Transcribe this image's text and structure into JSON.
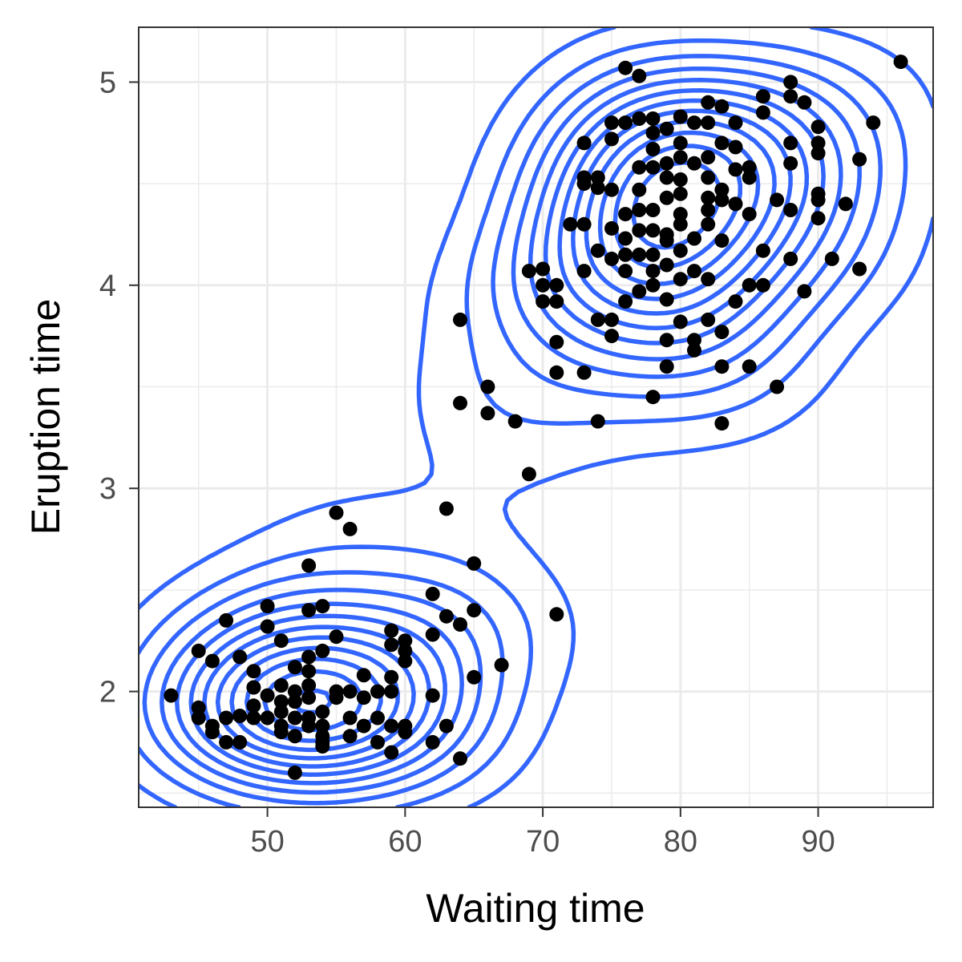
{
  "chart_data": {
    "type": "scatter",
    "title": "",
    "xlabel": "Waiting time",
    "ylabel": "Eruption time",
    "xlim": [
      40.65,
      98.35
    ],
    "ylim": [
      1.43,
      5.27
    ],
    "x_ticks": [
      50,
      60,
      70,
      80,
      90
    ],
    "y_ticks": [
      2,
      3,
      4,
      5
    ],
    "x_minor_ticks": [
      45,
      55,
      65,
      75,
      85,
      95
    ],
    "y_minor_ticks": [
      1.5,
      2.5,
      3.5,
      4.5
    ],
    "grid": true,
    "legend": "none",
    "colors": {
      "points": "#000000",
      "contours": "#3366ff",
      "grid": "#ebebeb",
      "panel_border": "#333333"
    },
    "overlay": "2d density contours (blue)",
    "points": [
      [
        96,
        5.1
      ],
      [
        76,
        5.07
      ],
      [
        77,
        5.03
      ],
      [
        88,
        5.0
      ],
      [
        88,
        4.93
      ],
      [
        86,
        4.93
      ],
      [
        89,
        4.9
      ],
      [
        82,
        4.9
      ],
      [
        83,
        4.88
      ],
      [
        86,
        4.85
      ],
      [
        80,
        4.83
      ],
      [
        77,
        4.82
      ],
      [
        78,
        4.82
      ],
      [
        81,
        4.8
      ],
      [
        82,
        4.8
      ],
      [
        84,
        4.8
      ],
      [
        75,
        4.8
      ],
      [
        76,
        4.8
      ],
      [
        90,
        4.78
      ],
      [
        94,
        4.8
      ],
      [
        79,
        4.77
      ],
      [
        78,
        4.75
      ],
      [
        75,
        4.72
      ],
      [
        73,
        4.7
      ],
      [
        80,
        4.7
      ],
      [
        83,
        4.7
      ],
      [
        84,
        4.68
      ],
      [
        88,
        4.7
      ],
      [
        90,
        4.7
      ],
      [
        78,
        4.67
      ],
      [
        80,
        4.63
      ],
      [
        82,
        4.63
      ],
      [
        79,
        4.6
      ],
      [
        81,
        4.6
      ],
      [
        77,
        4.58
      ],
      [
        78,
        4.58
      ],
      [
        84,
        4.57
      ],
      [
        85,
        4.58
      ],
      [
        88,
        4.6
      ],
      [
        93,
        4.62
      ],
      [
        90,
        4.65
      ],
      [
        73,
        4.53
      ],
      [
        74,
        4.53
      ],
      [
        79,
        4.53
      ],
      [
        80,
        4.52
      ],
      [
        82,
        4.53
      ],
      [
        85,
        4.53
      ],
      [
        73,
        4.5
      ],
      [
        74,
        4.48
      ],
      [
        75,
        4.47
      ],
      [
        83,
        4.47
      ],
      [
        90,
        4.45
      ],
      [
        90,
        4.42
      ],
      [
        92,
        4.4
      ],
      [
        77,
        4.47
      ],
      [
        79,
        4.43
      ],
      [
        80,
        4.45
      ],
      [
        82,
        4.43
      ],
      [
        83,
        4.42
      ],
      [
        84,
        4.4
      ],
      [
        87,
        4.42
      ],
      [
        76,
        4.35
      ],
      [
        77,
        4.37
      ],
      [
        78,
        4.37
      ],
      [
        80,
        4.35
      ],
      [
        82,
        4.37
      ],
      [
        85,
        4.35
      ],
      [
        88,
        4.37
      ],
      [
        90,
        4.33
      ],
      [
        72,
        4.3
      ],
      [
        73,
        4.3
      ],
      [
        75,
        4.28
      ],
      [
        77,
        4.27
      ],
      [
        78,
        4.27
      ],
      [
        79,
        4.25
      ],
      [
        80,
        4.3
      ],
      [
        82,
        4.3
      ],
      [
        76,
        4.23
      ],
      [
        79,
        4.22
      ],
      [
        81,
        4.23
      ],
      [
        83,
        4.22
      ],
      [
        74,
        4.17
      ],
      [
        75,
        4.13
      ],
      [
        76,
        4.15
      ],
      [
        77,
        4.15
      ],
      [
        78,
        4.15
      ],
      [
        80,
        4.17
      ],
      [
        86,
        4.17
      ],
      [
        88,
        4.13
      ],
      [
        91,
        4.13
      ],
      [
        93,
        4.08
      ],
      [
        69,
        4.07
      ],
      [
        70,
        4.08
      ],
      [
        70,
        4.0
      ],
      [
        71,
        4.0
      ],
      [
        73,
        4.07
      ],
      [
        76,
        4.07
      ],
      [
        78,
        4.07
      ],
      [
        79,
        4.1
      ],
      [
        81,
        4.07
      ],
      [
        80,
        4.03
      ],
      [
        82,
        4.03
      ],
      [
        85,
        4.0
      ],
      [
        86,
        4.0
      ],
      [
        89,
        3.97
      ],
      [
        70,
        3.92
      ],
      [
        71,
        3.92
      ],
      [
        76,
        3.92
      ],
      [
        77,
        3.97
      ],
      [
        78,
        4.0
      ],
      [
        79,
        3.93
      ],
      [
        84,
        3.92
      ],
      [
        64,
        3.83
      ],
      [
        74,
        3.83
      ],
      [
        75,
        3.83
      ],
      [
        80,
        3.82
      ],
      [
        82,
        3.83
      ],
      [
        75,
        3.75
      ],
      [
        79,
        3.73
      ],
      [
        81,
        3.73
      ],
      [
        83,
        3.77
      ],
      [
        71,
        3.72
      ],
      [
        81,
        3.68
      ],
      [
        71,
        3.57
      ],
      [
        73,
        3.57
      ],
      [
        79,
        3.6
      ],
      [
        83,
        3.6
      ],
      [
        85,
        3.6
      ],
      [
        66,
        3.5
      ],
      [
        78,
        3.45
      ],
      [
        87,
        3.5
      ],
      [
        64,
        3.42
      ],
      [
        66,
        3.37
      ],
      [
        68,
        3.33
      ],
      [
        74,
        3.33
      ],
      [
        83,
        3.32
      ],
      [
        69,
        3.07
      ],
      [
        63,
        2.9
      ],
      [
        55,
        2.88
      ],
      [
        56,
        2.8
      ],
      [
        65,
        2.63
      ],
      [
        53,
        2.62
      ],
      [
        62,
        2.48
      ],
      [
        50,
        2.42
      ],
      [
        54,
        2.42
      ],
      [
        53,
        2.4
      ],
      [
        65,
        2.4
      ],
      [
        71,
        2.38
      ],
      [
        63,
        2.37
      ],
      [
        64,
        2.33
      ],
      [
        47,
        2.35
      ],
      [
        50,
        2.32
      ],
      [
        59,
        2.3
      ],
      [
        55,
        2.27
      ],
      [
        62,
        2.28
      ],
      [
        51,
        2.25
      ],
      [
        59,
        2.23
      ],
      [
        60,
        2.25
      ],
      [
        45,
        2.2
      ],
      [
        53,
        2.17
      ],
      [
        54,
        2.2
      ],
      [
        60,
        2.2
      ],
      [
        48,
        2.17
      ],
      [
        46,
        2.15
      ],
      [
        60,
        2.15
      ],
      [
        52,
        2.12
      ],
      [
        67,
        2.13
      ],
      [
        49,
        2.1
      ],
      [
        53,
        2.1
      ],
      [
        59,
        2.07
      ],
      [
        57,
        2.08
      ],
      [
        65,
        2.07
      ],
      [
        51,
        2.03
      ],
      [
        52,
        2.0
      ],
      [
        53,
        2.03
      ],
      [
        56,
        2.0
      ],
      [
        55,
        2.0
      ],
      [
        58,
        2.0
      ],
      [
        59,
        2.0
      ],
      [
        49,
        2.02
      ],
      [
        43,
        1.98
      ],
      [
        50,
        1.98
      ],
      [
        52,
        1.95
      ],
      [
        53,
        1.97
      ],
      [
        55,
        1.97
      ],
      [
        57,
        1.97
      ],
      [
        62,
        1.98
      ],
      [
        49,
        1.93
      ],
      [
        51,
        1.95
      ],
      [
        45,
        1.92
      ],
      [
        48,
        1.88
      ],
      [
        49,
        1.87
      ],
      [
        50,
        1.87
      ],
      [
        51,
        1.9
      ],
      [
        52,
        1.87
      ],
      [
        53,
        1.87
      ],
      [
        54,
        1.9
      ],
      [
        56,
        1.87
      ],
      [
        58,
        1.87
      ],
      [
        45,
        1.87
      ],
      [
        47,
        1.87
      ],
      [
        51,
        1.83
      ],
      [
        53,
        1.83
      ],
      [
        54,
        1.83
      ],
      [
        57,
        1.83
      ],
      [
        59,
        1.83
      ],
      [
        60,
        1.83
      ],
      [
        63,
        1.83
      ],
      [
        46,
        1.83
      ],
      [
        46,
        1.8
      ],
      [
        51,
        1.8
      ],
      [
        52,
        1.78
      ],
      [
        54,
        1.78
      ],
      [
        56,
        1.78
      ],
      [
        60,
        1.8
      ],
      [
        47,
        1.75
      ],
      [
        48,
        1.75
      ],
      [
        54,
        1.75
      ],
      [
        58,
        1.75
      ],
      [
        62,
        1.75
      ],
      [
        54,
        1.73
      ],
      [
        59,
        1.7
      ],
      [
        64,
        1.67
      ],
      [
        52,
        1.6
      ]
    ]
  }
}
